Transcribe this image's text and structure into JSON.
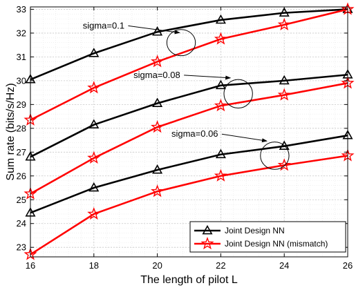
{
  "chart_data": {
    "type": "line",
    "xlabel": "The length of pilot L",
    "ylabel": "Sum rate (bits/s/Hz)",
    "x": [
      16,
      18,
      20,
      22,
      24,
      26
    ],
    "xlim": [
      16,
      26
    ],
    "ylim": [
      22.6,
      33.1
    ],
    "xticks": [
      16,
      18,
      20,
      22,
      24,
      26
    ],
    "yticks": [
      23,
      24,
      25,
      26,
      27,
      28,
      29,
      30,
      31,
      32,
      33
    ],
    "grid": true,
    "legend_position": "bottom-right",
    "legend": [
      {
        "label": "Joint Design NN",
        "color": "#000000",
        "marker": "triangle"
      },
      {
        "label": "Joint Design NN (mismatch)",
        "color": "#ff0000",
        "marker": "star"
      }
    ],
    "series": [
      {
        "sigma": "0.1",
        "kind": "joint",
        "color": "#000000",
        "marker": "triangle",
        "values": [
          30.05,
          31.15,
          32.05,
          32.55,
          32.85,
          33.0
        ]
      },
      {
        "sigma": "0.1",
        "kind": "mismatch",
        "color": "#ff0000",
        "marker": "star",
        "values": [
          28.35,
          29.7,
          30.8,
          31.75,
          32.35,
          33.0
        ]
      },
      {
        "sigma": "0.08",
        "kind": "joint",
        "color": "#000000",
        "marker": "triangle",
        "values": [
          26.8,
          28.15,
          29.05,
          29.8,
          30.0,
          30.25
        ]
      },
      {
        "sigma": "0.08",
        "kind": "mismatch",
        "color": "#ff0000",
        "marker": "star",
        "values": [
          25.25,
          26.75,
          28.05,
          28.95,
          29.4,
          29.9
        ]
      },
      {
        "sigma": "0.06",
        "kind": "joint",
        "color": "#000000",
        "marker": "triangle",
        "values": [
          24.45,
          25.5,
          26.25,
          26.9,
          27.25,
          27.7
        ]
      },
      {
        "sigma": "0.06",
        "kind": "mismatch",
        "color": "#ff0000",
        "marker": "star",
        "values": [
          22.7,
          24.4,
          25.35,
          26.0,
          26.45,
          26.85
        ]
      }
    ],
    "annotations": [
      {
        "text": "sigma=0.1",
        "arrow_to": [
          20.7,
          31.9
        ],
        "ellipse_at": [
          20.75,
          31.6
        ],
        "ellipse_w": 0.45,
        "ellipse_h": 1.1
      },
      {
        "text": "sigma=0.08",
        "arrow_to": [
          22.3,
          30.0
        ],
        "ellipse_at": [
          22.55,
          29.45
        ],
        "ellipse_w": 0.45,
        "ellipse_h": 1.2
      },
      {
        "text": "sigma=0.06",
        "arrow_to": [
          23.45,
          27.35
        ],
        "ellipse_at": [
          23.7,
          26.85
        ],
        "ellipse_w": 0.45,
        "ellipse_h": 1.15
      }
    ]
  }
}
